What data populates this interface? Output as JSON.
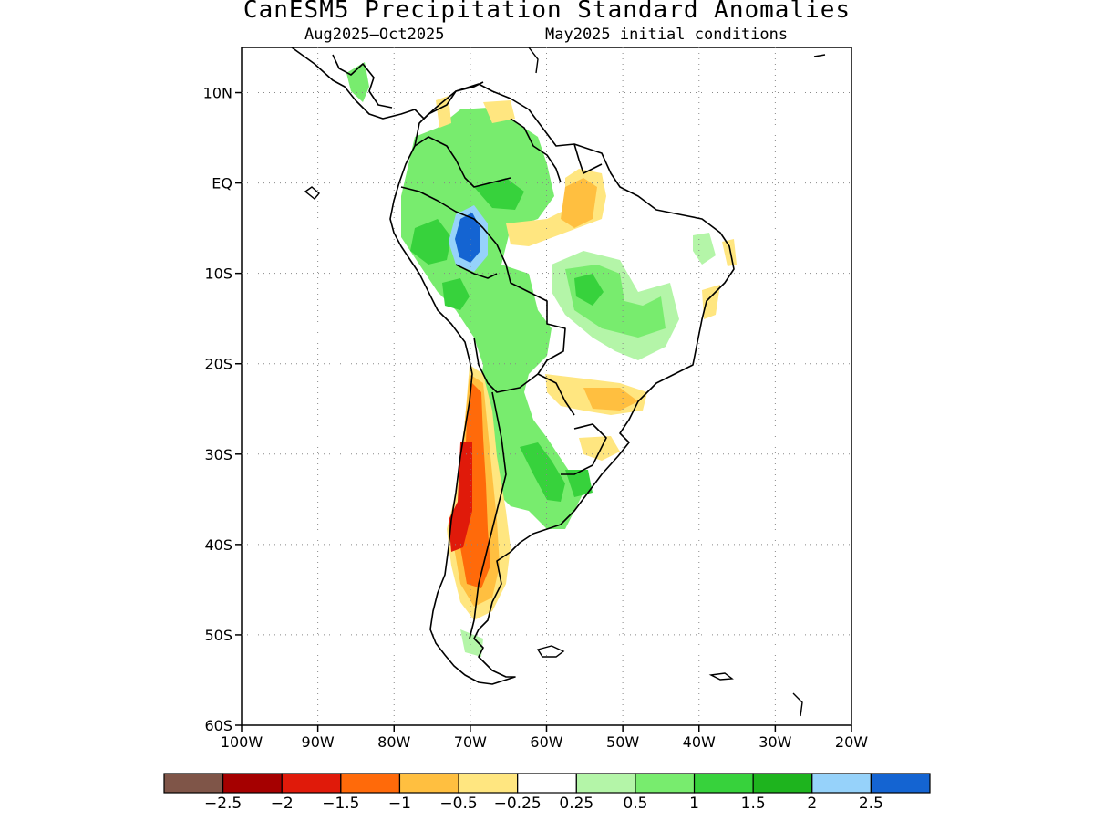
{
  "title": "CanESM5 Precipitation Standard Anomalies",
  "subtitle_left": "Aug2025–Oct2025",
  "subtitle_right": "May2025 initial conditions",
  "map": {
    "lon_range": [
      -100,
      -20
    ],
    "lat_range": [
      -60,
      15
    ],
    "grid": true,
    "lat_ticks": [
      {
        "value": 10,
        "label": "10N"
      },
      {
        "value": 0,
        "label": "EQ"
      },
      {
        "value": -10,
        "label": "10S"
      },
      {
        "value": -20,
        "label": "20S"
      },
      {
        "value": -30,
        "label": "30S"
      },
      {
        "value": -40,
        "label": "40S"
      },
      {
        "value": -50,
        "label": "50S"
      },
      {
        "value": -60,
        "label": "60S"
      }
    ],
    "lon_ticks": [
      {
        "value": -100,
        "label": "100W"
      },
      {
        "value": -90,
        "label": "90W"
      },
      {
        "value": -80,
        "label": "80W"
      },
      {
        "value": -70,
        "label": "70W"
      },
      {
        "value": -60,
        "label": "60W"
      },
      {
        "value": -50,
        "label": "50W"
      },
      {
        "value": -40,
        "label": "40W"
      },
      {
        "value": -30,
        "label": "30W"
      },
      {
        "value": -20,
        "label": "20W"
      }
    ]
  },
  "colorbar": {
    "colors": [
      "#7f5548",
      "#a50000",
      "#e01a0a",
      "#ff6a0a",
      "#ffbf40",
      "#ffe680",
      "#ffffff",
      "#b4f5a8",
      "#78ec6e",
      "#37d23c",
      "#1eb41e",
      "#96d2fa",
      "#1464d2"
    ],
    "labels": [
      "−2.5",
      "−2",
      "−1.5",
      "−1",
      "−0.5",
      "−0.25",
      "0.25",
      "0.5",
      "1",
      "1.5",
      "2",
      "2.5"
    ]
  }
}
